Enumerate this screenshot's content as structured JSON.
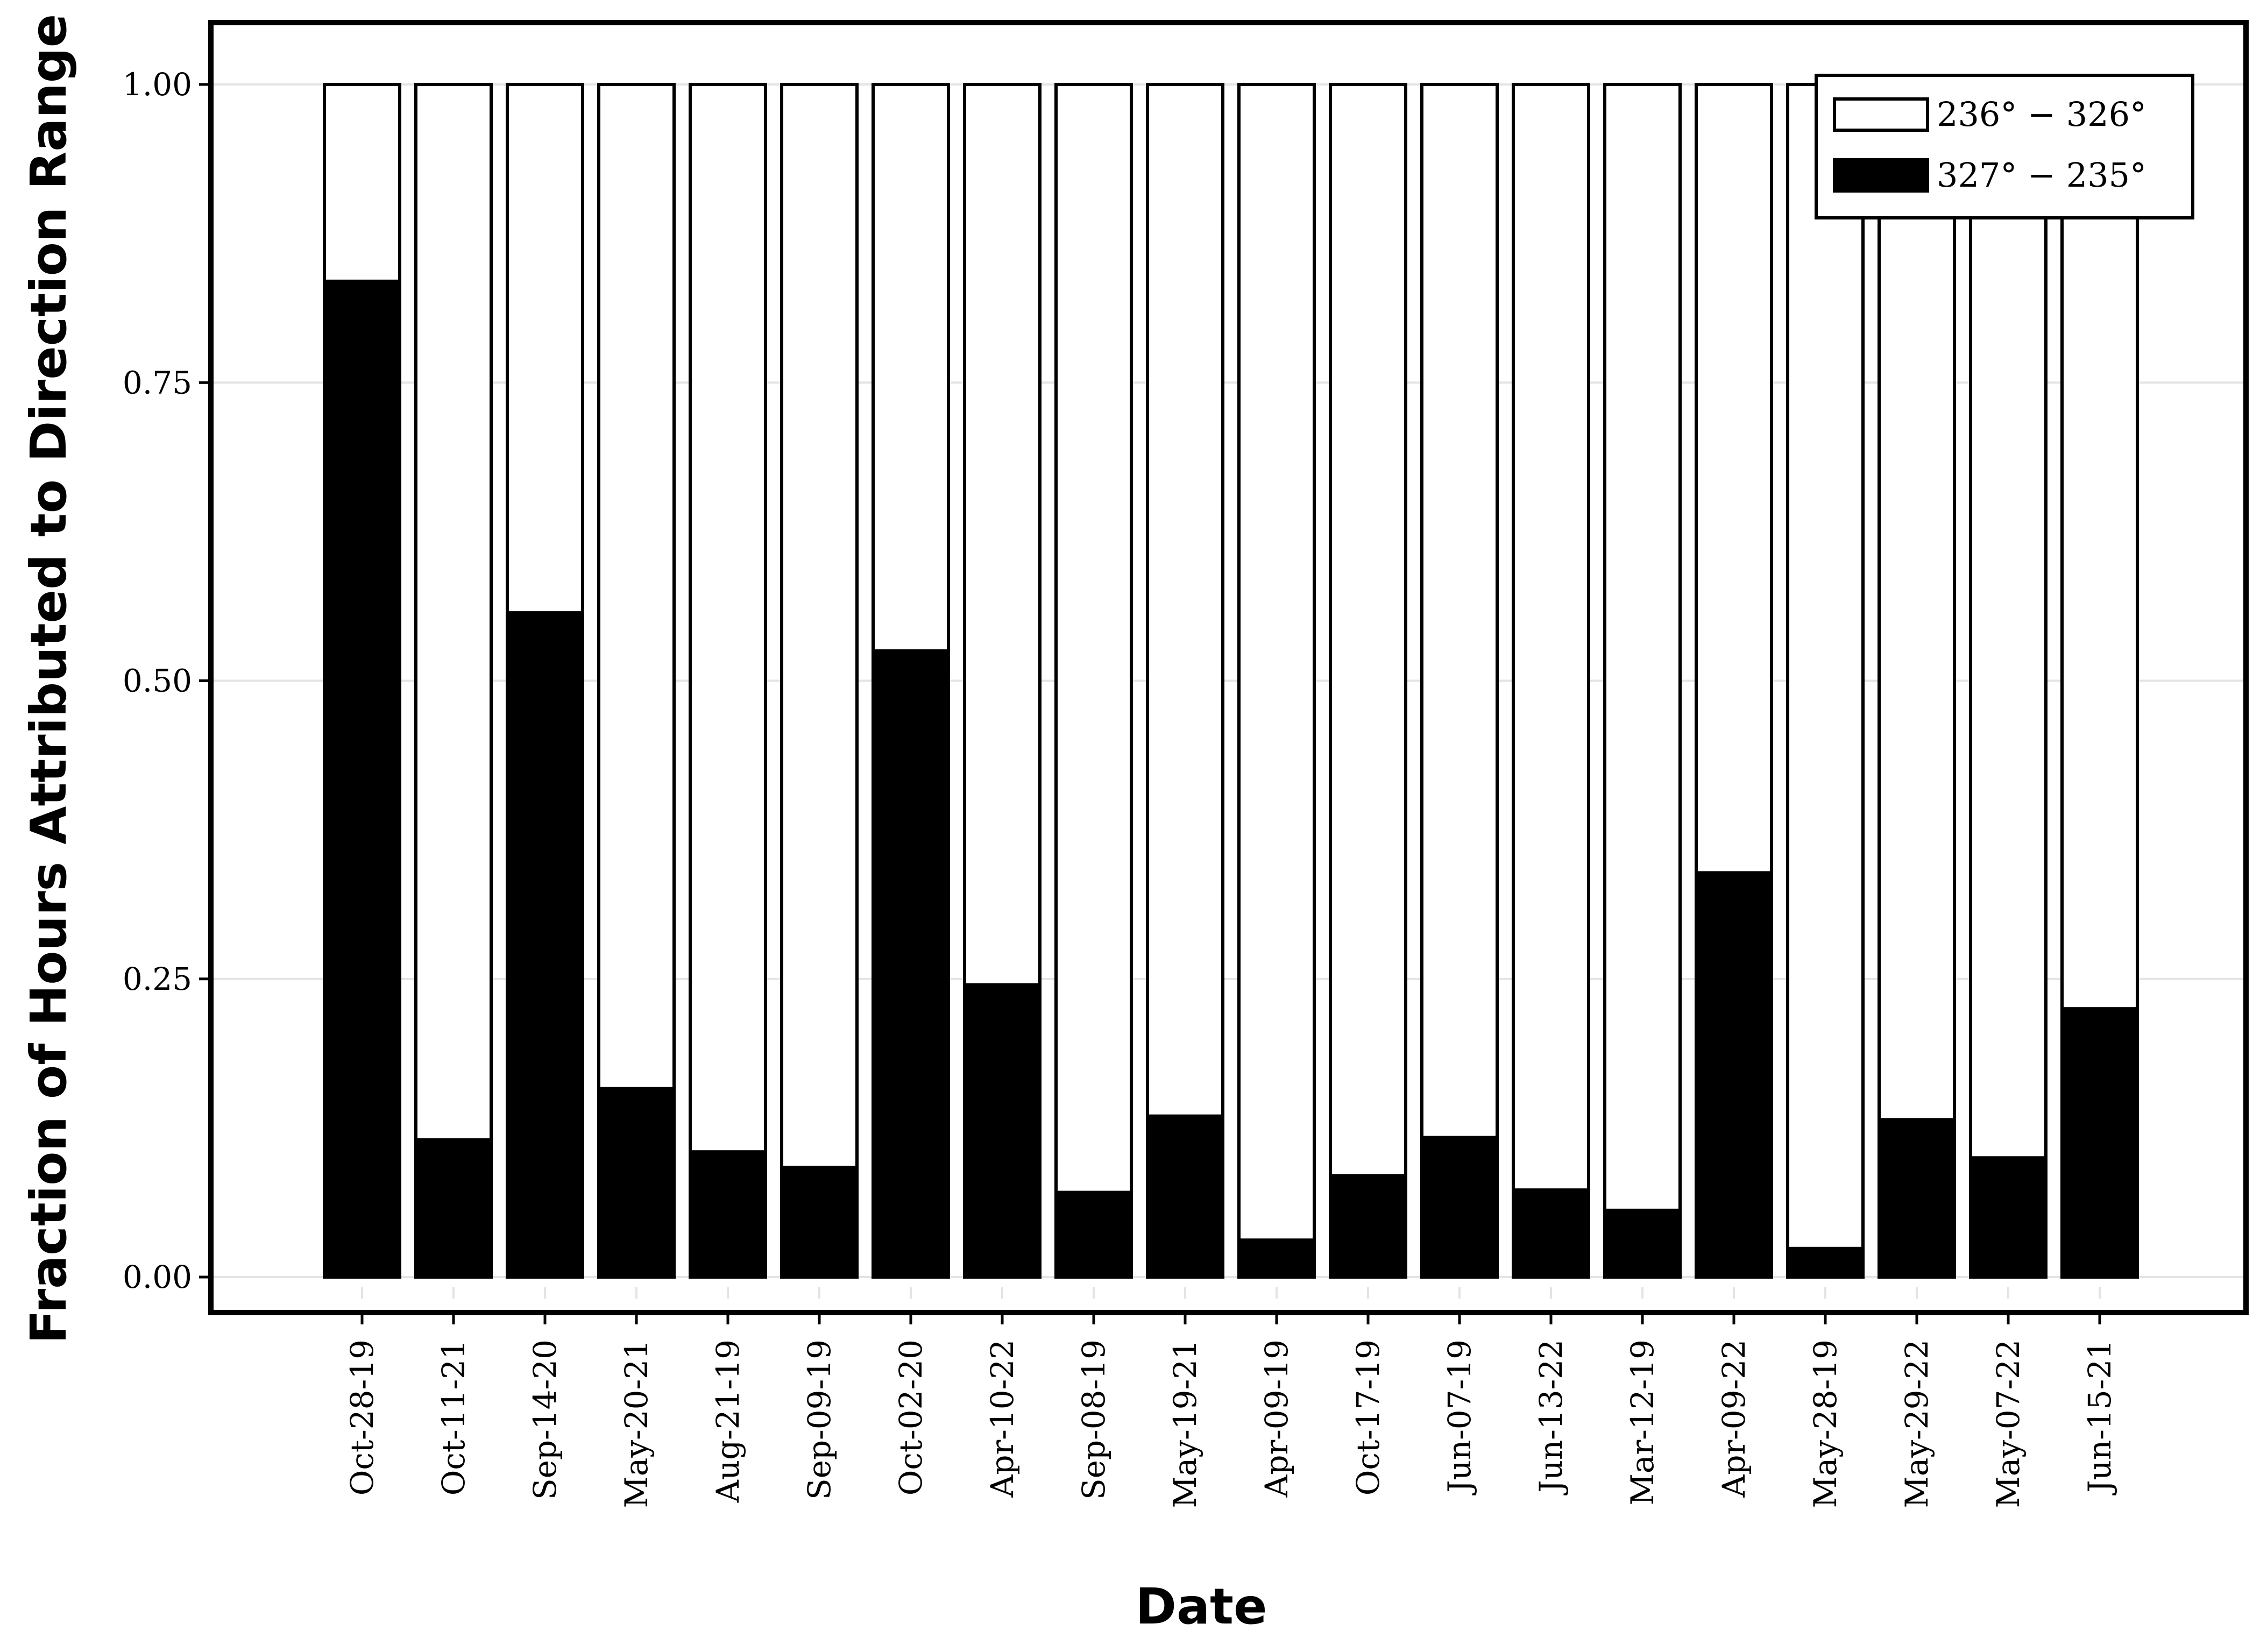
{
  "chart_data": {
    "type": "bar",
    "stacked": true,
    "title": "",
    "xlabel": "Date",
    "ylabel": "Fraction of Hours Attributed to Direction Range",
    "ylim": [
      0,
      1
    ],
    "yticks": [
      "0.00",
      "0.25",
      "0.50",
      "0.75",
      "1.00"
    ],
    "grid": true,
    "legend_position": "top-right",
    "categories": [
      "Oct-28-19",
      "Oct-11-21",
      "Sep-14-20",
      "May-20-21",
      "Aug-21-19",
      "Sep-09-19",
      "Oct-02-20",
      "Apr-10-22",
      "Sep-08-19",
      "May-19-21",
      "Apr-09-19",
      "Oct-17-19",
      "Jun-07-19",
      "Jun-13-22",
      "Mar-12-19",
      "Apr-09-22",
      "May-28-19",
      "May-29-22",
      "May-07-22",
      "Jun-15-21"
    ],
    "series": [
      {
        "name": "327° − 235°",
        "color": "#000000",
        "values": [
          0.835,
          0.115,
          0.557,
          0.158,
          0.105,
          0.092,
          0.525,
          0.245,
          0.071,
          0.135,
          0.031,
          0.085,
          0.117,
          0.073,
          0.056,
          0.339,
          0.024,
          0.132,
          0.1,
          0.225
        ]
      },
      {
        "name": "236° − 326°",
        "color": "#ffffff",
        "values": [
          0.165,
          0.885,
          0.443,
          0.842,
          0.895,
          0.908,
          0.475,
          0.755,
          0.929,
          0.865,
          0.969,
          0.915,
          0.883,
          0.927,
          0.944,
          0.661,
          0.976,
          0.868,
          0.9,
          0.775
        ]
      }
    ]
  }
}
